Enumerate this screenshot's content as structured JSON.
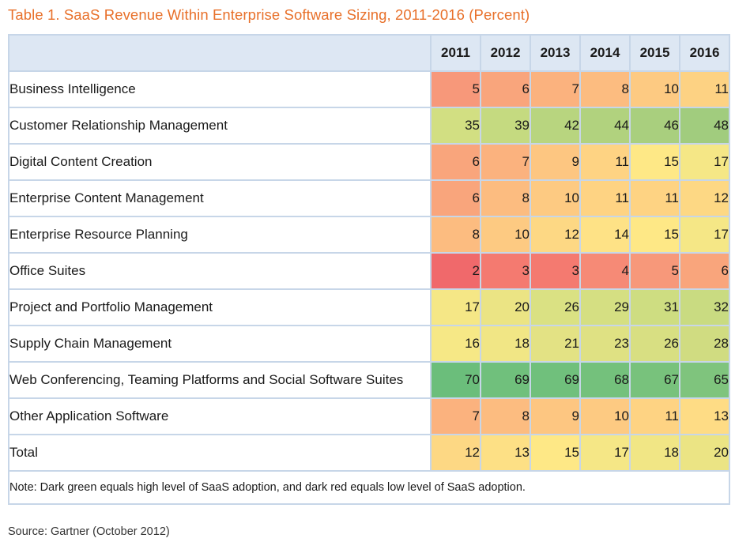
{
  "title": "Table 1. SaaS Revenue Within Enterprise Software Sizing, 2011-2016 (Percent)",
  "years": [
    "2011",
    "2012",
    "2013",
    "2014",
    "2015",
    "2016"
  ],
  "rows": [
    {
      "label": "Business Intelligence",
      "values": [
        "5",
        "6",
        "7",
        "8",
        "10",
        "11"
      ]
    },
    {
      "label": "Customer Relationship Management",
      "values": [
        "35",
        "39",
        "42",
        "44",
        "46",
        "48"
      ]
    },
    {
      "label": "Digital Content Creation",
      "values": [
        "6",
        "7",
        "9",
        "11",
        "15",
        "17"
      ]
    },
    {
      "label": "Enterprise Content Management",
      "values": [
        "6",
        "8",
        "10",
        "11",
        "11",
        "12"
      ]
    },
    {
      "label": "Enterprise Resource Planning",
      "values": [
        "8",
        "10",
        "12",
        "14",
        "15",
        "17"
      ]
    },
    {
      "label": "Office Suites",
      "values": [
        "2",
        "3",
        "3",
        "4",
        "5",
        "6"
      ]
    },
    {
      "label": "Project and Portfolio Management",
      "values": [
        "17",
        "20",
        "26",
        "29",
        "31",
        "32"
      ]
    },
    {
      "label": "Supply Chain Management",
      "values": [
        "16",
        "18",
        "21",
        "23",
        "26",
        "28"
      ]
    },
    {
      "label": "Web Conferencing, Teaming Platforms and Social Software Suites",
      "values": [
        "70",
        "69",
        "69",
        "68",
        "67",
        "65"
      ]
    },
    {
      "label": "Other Application Software",
      "values": [
        "7",
        "8",
        "9",
        "10",
        "11",
        "13"
      ]
    },
    {
      "label": "Total",
      "values": [
        "12",
        "13",
        "15",
        "17",
        "18",
        "20"
      ]
    }
  ],
  "note": "Note: Dark green equals high level of SaaS adoption, and dark red equals low level of SaaS adoption.",
  "source": "Source: Gartner (October 2012)",
  "colors": {
    "title": "#e8702a",
    "header_bg": "#dde7f3",
    "border": "#c7d6e8",
    "cells": [
      [
        "#f7987a",
        "#f9a57c",
        "#fbb27e",
        "#fcbc80",
        "#fdca82",
        "#fdd283"
      ],
      [
        "#d2df82",
        "#c5da80",
        "#b8d57f",
        "#b1d27e",
        "#a9cf7e",
        "#a1cc7e"
      ],
      [
        "#f9a57c",
        "#fbb27e",
        "#fdc681",
        "#fed383",
        "#fee886",
        "#f5e786"
      ],
      [
        "#f9a57c",
        "#fcbc80",
        "#fdca82",
        "#fed383",
        "#fed383",
        "#fdd884"
      ],
      [
        "#fcbc80",
        "#fdca82",
        "#fdd884",
        "#fee286",
        "#fee886",
        "#f5e786"
      ],
      [
        "#f0696b",
        "#f47a70",
        "#f47a70",
        "#f68a76",
        "#f7987a",
        "#f9a57c"
      ],
      [
        "#f5e786",
        "#ebe484",
        "#dae183",
        "#d5df82",
        "#cedd81",
        "#c9db81"
      ],
      [
        "#f6e886",
        "#f1e685",
        "#e3e284",
        "#dfe183",
        "#d8df82",
        "#d0dc81"
      ],
      [
        "#6bbe7b",
        "#70c07c",
        "#70c07c",
        "#74c17c",
        "#78c27c",
        "#7fc47d"
      ],
      [
        "#fbb27e",
        "#fcbc80",
        "#fdc681",
        "#fdca82",
        "#fed383",
        "#fedc85"
      ],
      [
        "#fdd884",
        "#fde085",
        "#fee886",
        "#f5e786",
        "#f1e685",
        "#ebe484"
      ]
    ]
  }
}
